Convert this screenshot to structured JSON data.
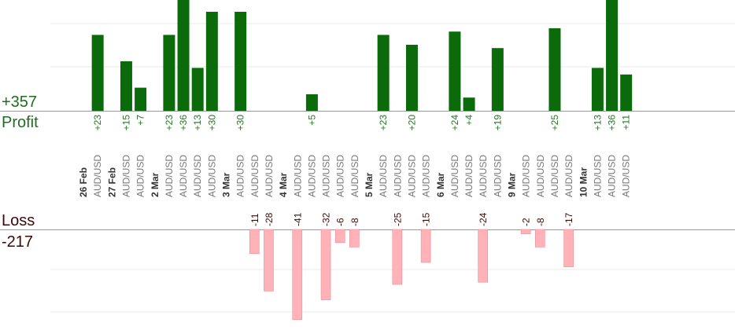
{
  "summary": {
    "profit_total": "+357",
    "profit_label": "Profit",
    "loss_label": "Loss",
    "loss_total": "-217"
  },
  "colors": {
    "profit_bar": "#0b6b0b",
    "profit_text": "#1f7a1f",
    "loss_bar": "#ffb3b8",
    "loss_text": "#3a0a0a",
    "axis": "#999999",
    "grid": "#e8e8e8",
    "date_text": "#333333",
    "pair_text": "#777777"
  },
  "chart_data": {
    "type": "bar",
    "title": "",
    "profit_ylim": [
      0,
      40
    ],
    "loss_ylim": [
      0,
      40
    ],
    "grid": true,
    "dates": [
      "26 Feb",
      "27 Feb",
      "2 Mar",
      "3 Mar",
      "4 Mar",
      "5 Mar",
      "6 Mar",
      "9 Mar",
      "10 Mar"
    ],
    "slots": [
      {
        "date": "26 Feb"
      },
      {
        "pair": "AUD/USD",
        "value": 23
      },
      {
        "date": "27 Feb"
      },
      {
        "pair": "AUD/USD",
        "value": 15
      },
      {
        "pair": "AUD/USD",
        "value": 7
      },
      {
        "date": "2 Mar"
      },
      {
        "pair": "AUD/USD",
        "value": 23
      },
      {
        "pair": "AUD/USD",
        "value": 36
      },
      {
        "pair": "AUD/USD",
        "value": 13
      },
      {
        "pair": "AUD/USD",
        "value": 30
      },
      {
        "date": "3 Mar"
      },
      {
        "pair": "AUD/USD",
        "value": 30
      },
      {
        "pair": "AUD/USD",
        "value": -11
      },
      {
        "pair": "AUD/USD",
        "value": -28
      },
      {
        "date": "4 Mar"
      },
      {
        "pair": "AUD/USD",
        "value": -41
      },
      {
        "pair": "AUD/USD",
        "value": 5
      },
      {
        "pair": "AUD/USD",
        "value": -32
      },
      {
        "pair": "AUD/USD",
        "value": -6
      },
      {
        "pair": "AUD/USD",
        "value": -8
      },
      {
        "date": "5 Mar"
      },
      {
        "pair": "AUD/USD",
        "value": 23
      },
      {
        "pair": "AUD/USD",
        "value": -25
      },
      {
        "pair": "AUD/USD",
        "value": 20
      },
      {
        "pair": "AUD/USD",
        "value": -15
      },
      {
        "date": "6 Mar"
      },
      {
        "pair": "AUD/USD",
        "value": 24
      },
      {
        "pair": "AUD/USD",
        "value": 4
      },
      {
        "pair": "AUD/USD",
        "value": -24
      },
      {
        "pair": "AUD/USD",
        "value": 19
      },
      {
        "date": "9 Mar"
      },
      {
        "pair": "AUD/USD",
        "value": -2
      },
      {
        "pair": "AUD/USD",
        "value": -8
      },
      {
        "pair": "AUD/USD",
        "value": 25
      },
      {
        "pair": "AUD/USD",
        "value": -17
      },
      {
        "date": "10 Mar"
      },
      {
        "pair": "AUD/USD",
        "value": 13
      },
      {
        "pair": "AUD/USD",
        "value": 36
      },
      {
        "pair": "AUD/USD",
        "value": 11
      }
    ]
  }
}
